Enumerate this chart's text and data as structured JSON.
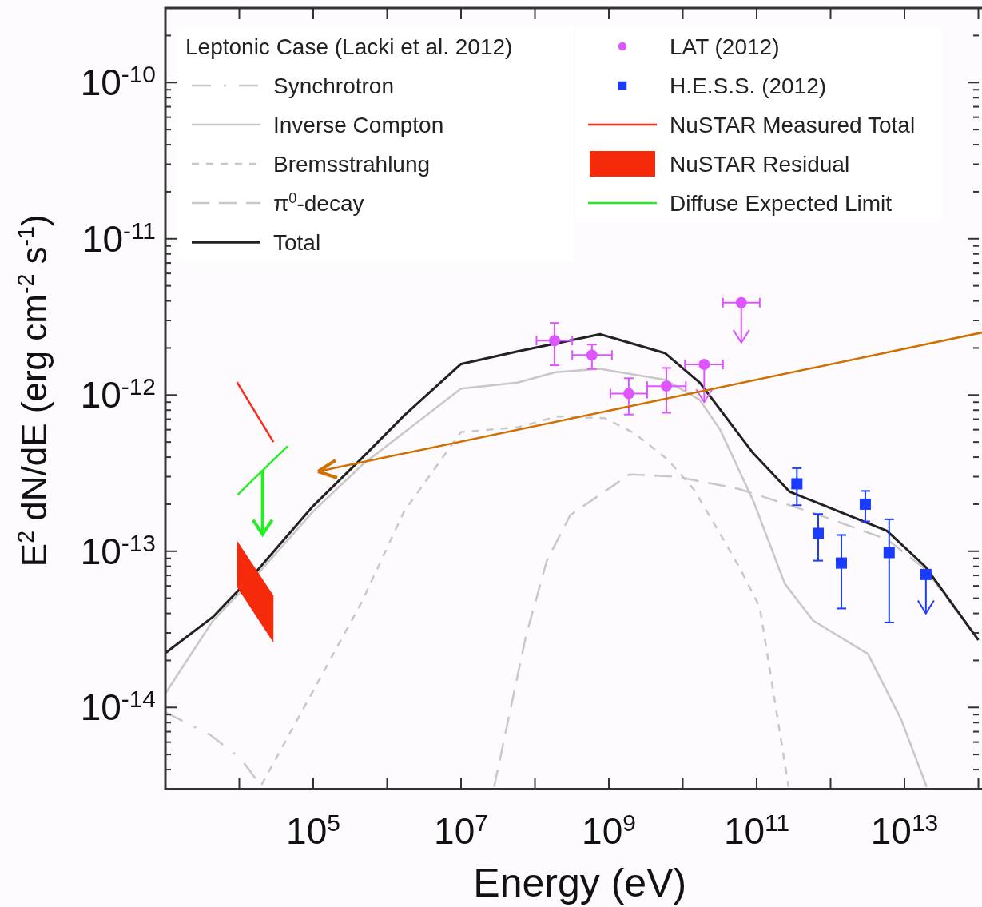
{
  "chart_data": {
    "type": "line",
    "xlabel": "Energy (eV)",
    "ylabel": "E$^{2}$ dN/dE (erg cm$^{-2}$ s$^{-1}$)",
    "legend_title": "Leptonic Case (Lacki et al. 2012)",
    "log": "xy",
    "legend": "top",
    "xlim": [
      1000.0,
      100000000000000.0
    ],
    "xticks": [
      {
        "value": 1000.0,
        "label": null
      },
      {
        "value": 10000.0,
        "label": null
      },
      {
        "value": 100000.0,
        "label": "10$^{5}$"
      },
      {
        "value": 1000000.0,
        "label": null
      },
      {
        "value": 10000000.0,
        "label": "10$^{7}$"
      },
      {
        "value": 100000000.0,
        "label": null
      },
      {
        "value": 1000000000.0,
        "label": "10$^{9}$"
      },
      {
        "value": 10000000000.0,
        "label": null
      },
      {
        "value": 100000000000.0,
        "label": "10$^{11}$"
      },
      {
        "value": 1000000000000.0,
        "label": null
      },
      {
        "value": 10000000000000.0,
        "label": "10$^{13}$"
      },
      {
        "value": 100000000000000.0,
        "label": null
      }
    ],
    "ylim": [
      3e-15,
      3e-10
    ],
    "yticks": [
      {
        "value": 3e-15,
        "label": null
      },
      {
        "value": 4e-15,
        "label": null
      },
      {
        "value": 5e-15,
        "label": null
      },
      {
        "value": 6e-15,
        "label": null
      },
      {
        "value": 7e-15,
        "label": null
      },
      {
        "value": 8e-15,
        "label": null
      },
      {
        "value": 9e-15,
        "label": null
      },
      {
        "value": 1e-14,
        "label": "10$^{-14}$"
      },
      {
        "value": 2e-14,
        "label": null
      },
      {
        "value": 3e-14,
        "label": null
      },
      {
        "value": 4e-14,
        "label": null
      },
      {
        "value": 5e-14,
        "label": null
      },
      {
        "value": 6e-14,
        "label": null
      },
      {
        "value": 7e-14,
        "label": null
      },
      {
        "value": 8e-14,
        "label": null
      },
      {
        "value": 9e-14,
        "label": null
      },
      {
        "value": 1e-13,
        "label": "10$^{-13}$"
      },
      {
        "value": 2e-13,
        "label": null
      },
      {
        "value": 3e-13,
        "label": null
      },
      {
        "value": 4e-13,
        "label": null
      },
      {
        "value": 5e-13,
        "label": null
      },
      {
        "value": 6e-13,
        "label": null
      },
      {
        "value": 7e-13,
        "label": null
      },
      {
        "value": 8e-13,
        "label": null
      },
      {
        "value": 9e-13,
        "label": null
      },
      {
        "value": 1e-12,
        "label": "10$^{-12}$"
      },
      {
        "value": 2e-12,
        "label": null
      },
      {
        "value": 3e-12,
        "label": null
      },
      {
        "value": 4e-12,
        "label": null
      },
      {
        "value": 5e-12,
        "label": null
      },
      {
        "value": 6e-12,
        "label": null
      },
      {
        "value": 7e-12,
        "label": null
      },
      {
        "value": 8e-12,
        "label": null
      },
      {
        "value": 9e-12,
        "label": null
      },
      {
        "value": 1e-11,
        "label": "10$^{-11}$"
      },
      {
        "value": 2e-11,
        "label": null
      },
      {
        "value": 3e-11,
        "label": null
      },
      {
        "value": 4e-11,
        "label": null
      },
      {
        "value": 5e-11,
        "label": null
      },
      {
        "value": 6e-11,
        "label": null
      },
      {
        "value": 7e-11,
        "label": null
      },
      {
        "value": 8e-11,
        "label": null
      },
      {
        "value": 9e-11,
        "label": null
      },
      {
        "value": 1e-10,
        "label": "10$^{-10}$"
      },
      {
        "value": 2e-10,
        "label": null
      },
      {
        "value": 3e-10,
        "label": null
      }
    ],
    "series": [
      {
        "name": "Synchrotron",
        "color": "#c8c8c8",
        "line_style": "dashdot",
        "x": [
          1000.0,
          4000.0,
          10500.0,
          19500.0
        ],
        "values": [
          9.3e-15,
          6.7e-15,
          4.7e-15,
          3.16e-15
        ]
      },
      {
        "name": "Inverse Compton",
        "color": "#c8c8c8",
        "line_style": "solid",
        "x": [
          1000.0,
          4400.0,
          17000.0,
          100000.0,
          470000.0,
          10000000.0,
          58000000.0,
          190000000.0,
          760000000.0,
          5800000000.0,
          17000000000.0,
          32000000000.0,
          90000000000.0,
          240000000000.0,
          580000000000.0,
          3200000000000.0,
          9000000000000.0,
          20000000000000.0
        ],
        "values": [
          1.23e-14,
          3.6e-14,
          7e-14,
          1.8e-13,
          3.6e-13,
          1.1e-12,
          1.2e-12,
          1.4e-12,
          1.47e-12,
          1.25e-12,
          9.3e-13,
          6e-13,
          2.1e-13,
          6.2e-14,
          3.6e-14,
          2.2e-14,
          8.4e-15,
          3.1e-15
        ]
      },
      {
        "name": "Bremsstrahlung",
        "color": "#c8c8c8",
        "line_style": "dotted",
        "x": [
          20000.0,
          100000.0,
          450000.0,
          1700000.0,
          10000000.0,
          58000000.0,
          200000000.0,
          890000000.0,
          2200000000.0,
          6300000000.0,
          14000000000.0,
          29000000000.0,
          60000000000.0,
          110000000000.0,
          270000000000.0
        ],
        "values": [
          3.2e-15,
          1.28e-14,
          4.7e-14,
          1.8e-13,
          5.8e-13,
          6.2e-13,
          7.3e-13,
          7.1e-13,
          5.7e-13,
          3.85e-13,
          2.5e-13,
          1.4e-13,
          7.7e-14,
          4.4e-14,
          3.1e-15
        ]
      },
      {
        "name": "π$^{0}$-decay",
        "type": "line",
        "color": "#c8c8c8",
        "line_style": "dashed",
        "x": [
          28000000.0,
          76000000.0,
          145000000.0,
          300000000.0,
          1900000000.0,
          8300000000.0,
          58000000000.0,
          580000000000.0,
          5800000000000.0,
          19000000000000.0,
          100000000000000.0
        ],
        "values": [
          3.1e-15,
          2.9e-14,
          8.7e-14,
          1.7e-13,
          3.1e-13,
          3e-13,
          2.5e-13,
          1.76e-13,
          1.19e-13,
          7.7e-14,
          2.7e-14
        ]
      },
      {
        "name": "Total",
        "color": "#222222",
        "line_style": "solid",
        "x": [
          1000.0,
          4400.0,
          17000.0,
          100000.0,
          470000.0,
          1700000.0,
          10000000.0,
          58000000.0,
          760000000.0,
          5800000000.0,
          17000000000.0,
          90000000000.0,
          280000000000.0,
          1450000000000.0,
          5800000000000.0,
          19000000000000.0,
          100000000000000.0
        ],
        "values": [
          2.23e-14,
          3.8e-14,
          7.4e-14,
          1.95e-13,
          4e-13,
          7.4e-13,
          1.58e-12,
          1.9e-12,
          2.45e-12,
          1.85e-12,
          1.2e-12,
          4.23e-13,
          2.4e-13,
          1.76e-13,
          1.35e-13,
          8e-14,
          2.7e-14
        ]
      },
      {
        "name": "LAT (2012)",
        "type": "scatter",
        "color": "#dd55ff",
        "marker": "circle",
        "x": [
          184000000.0,
          590000000.0,
          1860000000.0,
          6000000000.0,
          19500000000.0,
          62000000000.0
        ],
        "values": [
          2.23e-12,
          1.8e-12,
          1.02e-12,
          1.14e-12,
          1.57e-12,
          3.9e-12
        ],
        "errors": [
          [
            1.55e-12,
            2.89e-12
          ],
          [
            1.47e-12,
            2.1e-12
          ],
          [
            7.5e-13,
            1.28e-12
          ],
          [
            7.7e-13,
            1.49e-12
          ],
          [
            9e-13,
            1.57e-12
          ],
          [
            2.16e-12,
            3.9e-12
          ]
        ],
        "xerrors": [
          [
            105000000.0,
            320000000.0
          ],
          [
            320000000.0,
            1100000000.0
          ],
          [
            1050000000.0,
            3300000000.0
          ],
          [
            3300000000.0,
            11000000000.0
          ],
          [
            10700000000.0,
            35000000000.0
          ],
          [
            35000000000.0,
            110000000000.0
          ]
        ]
      },
      {
        "name": "H.E.S.S. (2012)",
        "type": "scatter",
        "color": "#1a3cff",
        "marker": "square",
        "x": [
          350000000000.0,
          680000000000.0,
          1400000000000.0,
          2950000000000.0,
          6200000000000.0,
          19500000000000.0
        ],
        "values": [
          2.7e-13,
          1.3e-13,
          8.4e-14,
          2e-13,
          9.8e-14,
          7.1e-14
        ],
        "errors": [
          [
            1.97e-13,
            3.4e-13
          ],
          [
            8.7e-14,
            1.73e-13
          ],
          [
            4.3e-14,
            1.27e-13
          ],
          [
            1.55e-13,
            2.43e-13
          ],
          [
            3.5e-14,
            1.6e-13
          ],
          [
            4e-14,
            7.1e-14
          ]
        ]
      },
      {
        "name": "NuSTAR Measured Total",
        "type": "line",
        "color": "#ff2a1a",
        "line_style": "solid",
        "x": [
          9300.0,
          29000.0
        ],
        "values": [
          1.21e-12,
          5e-13
        ]
      },
      {
        "name": "NuSTAR Residual",
        "type": "area",
        "color": "#f52a0a",
        "x": [
          9300.0,
          29000.0
        ],
        "values": [
          null,
          null
        ],
        "lower": [
          5.9e-14,
          2.6e-14
        ],
        "upper": [
          1.17e-13,
          5.2e-14
        ]
      },
      {
        "name": "Diffuse Expected Limit",
        "type": "line",
        "color": "#22ee22",
        "line_style": "solid",
        "x": [
          9500.0,
          45000.0
        ],
        "values": [
          2.3e-13,
          4.7e-13
        ]
      }
    ]
  }
}
